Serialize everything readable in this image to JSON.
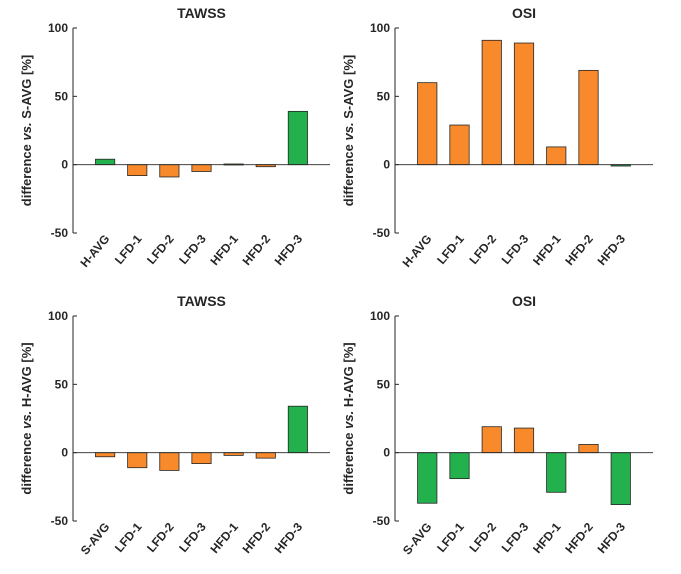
{
  "colors": {
    "increase": "#f98a2b",
    "decrease": "#22b14c",
    "edge": "#262626",
    "axis": "#262626"
  },
  "chart_data": [
    {
      "type": "bar",
      "title": "TAWSS",
      "ylabel": "difference vs. S-AVG [%]",
      "ylabel_parts": [
        "difference ",
        "vs.",
        " S-AVG [%]"
      ],
      "ylim": [
        -50,
        100
      ],
      "yticks": [
        -50,
        0,
        50,
        100
      ],
      "categories": [
        "H-AVG",
        "LFD-1",
        "LFD-2",
        "LFD-3",
        "HFD-1",
        "HFD-2",
        "HFD-3"
      ],
      "values": [
        4,
        -8,
        -9,
        -5,
        0.5,
        -1.5,
        39
      ],
      "bar_colors": [
        "decrease",
        "increase",
        "increase",
        "increase",
        "increase",
        "increase",
        "decrease"
      ]
    },
    {
      "type": "bar",
      "title": "OSI",
      "ylabel": "difference vs. S-AVG [%]",
      "ylabel_parts": [
        "difference ",
        "vs.",
        " S-AVG [%]"
      ],
      "ylim": [
        -50,
        100
      ],
      "yticks": [
        -50,
        0,
        50,
        100
      ],
      "categories": [
        "H-AVG",
        "LFD-1",
        "LFD-2",
        "LFD-3",
        "HFD-1",
        "HFD-2",
        "HFD-3"
      ],
      "values": [
        60,
        29,
        91,
        89,
        13,
        69,
        -1
      ],
      "bar_colors": [
        "increase",
        "increase",
        "increase",
        "increase",
        "increase",
        "increase",
        "decrease"
      ]
    },
    {
      "type": "bar",
      "title": "TAWSS",
      "ylabel": "difference vs. H-AVG [%]",
      "ylabel_parts": [
        "difference ",
        "vs.",
        " H-AVG [%]"
      ],
      "ylim": [
        -50,
        100
      ],
      "yticks": [
        -50,
        0,
        50,
        100
      ],
      "categories": [
        "S-AVG",
        "LFD-1",
        "LFD-2",
        "LFD-3",
        "HFD-1",
        "HFD-2",
        "HFD-3"
      ],
      "values": [
        -3,
        -11,
        -13,
        -8,
        -2,
        -4,
        34
      ],
      "bar_colors": [
        "increase",
        "increase",
        "increase",
        "increase",
        "increase",
        "increase",
        "decrease"
      ]
    },
    {
      "type": "bar",
      "title": "OSI",
      "ylabel": "difference vs. H-AVG [%]",
      "ylabel_parts": [
        "difference ",
        "vs.",
        " H-AVG [%]"
      ],
      "ylim": [
        -50,
        100
      ],
      "yticks": [
        -50,
        0,
        50,
        100
      ],
      "categories": [
        "S-AVG",
        "LFD-1",
        "LFD-2",
        "LFD-3",
        "HFD-1",
        "HFD-2",
        "HFD-3"
      ],
      "values": [
        -37,
        -19,
        19,
        18,
        -29,
        6,
        -38
      ],
      "bar_colors": [
        "decrease",
        "decrease",
        "increase",
        "increase",
        "decrease",
        "increase",
        "decrease"
      ]
    }
  ]
}
